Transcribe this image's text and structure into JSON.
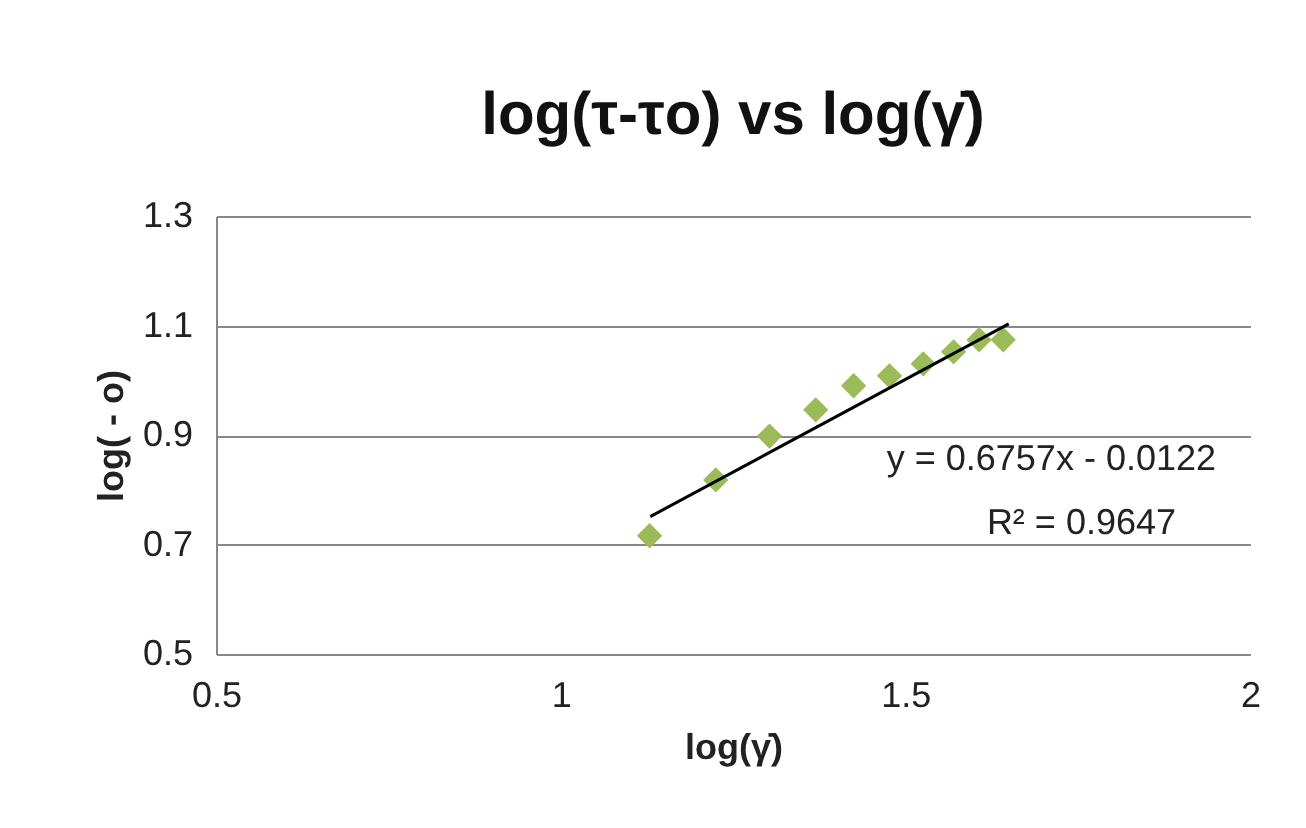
{
  "chart_data": {
    "type": "scatter",
    "title": "log(τ-τo) vs log(γ̇)",
    "xlabel": "log(γ̇)",
    "ylabel": "log( - o)",
    "xlim": [
      0.5,
      2
    ],
    "xticks": [
      0.5,
      1,
      1.5,
      2
    ],
    "ylim": [
      0.5,
      1.3
    ],
    "yticks": [
      0.5,
      0.7,
      0.9,
      1.1,
      1.3
    ],
    "grid": "y",
    "series": [
      {
        "color": "#9bbb59",
        "marker": "diamond",
        "x": [
          1.129,
          1.225,
          1.303,
          1.37,
          1.425,
          1.477,
          1.526,
          1.57,
          1.607,
          1.642
        ],
        "values": [
          0.716,
          0.818,
          0.898,
          0.946,
          0.99,
          1.008,
          1.03,
          1.052,
          1.074,
          1.074
        ]
      },
      {
        "type": "line",
        "marker": "none",
        "color": "#000000",
        "x": [
          1.13,
          1.65
        ],
        "values": [
          0.751,
          1.103
        ]
      }
    ],
    "annotations": [
      "y = 0.6757x - 0.0122",
      "R² = 0.9647"
    ]
  }
}
